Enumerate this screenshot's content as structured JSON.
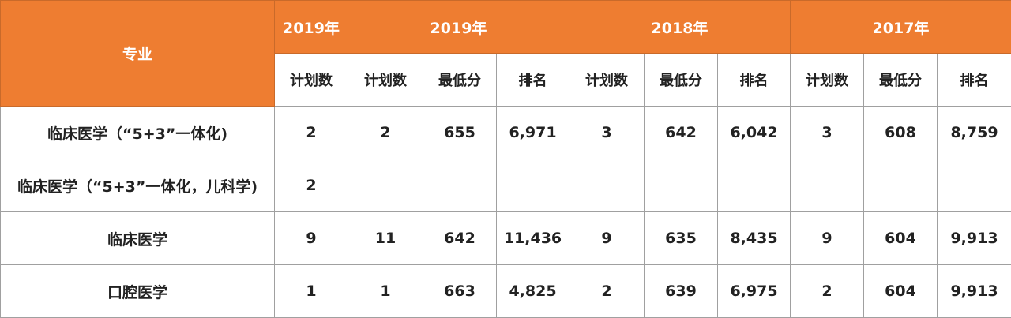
{
  "header": {
    "major_label": "专业",
    "groups": [
      "2019年",
      "2019年",
      "2018年",
      "2017年"
    ],
    "subheaders": [
      "计划数",
      "计划数",
      "最低分",
      "排名",
      "计划数",
      "最低分",
      "排名",
      "计划数",
      "最低分",
      "排名"
    ]
  },
  "rows": [
    {
      "major": "临床医学（“5+3”一体化)",
      "cells": [
        "2",
        "2",
        "655",
        "6,971",
        "3",
        "642",
        "6,042",
        "3",
        "608",
        "8,759"
      ]
    },
    {
      "major": "临床医学（“5+3”一体化，儿科学)",
      "cells": [
        "2",
        "",
        "",
        "",
        "",
        "",
        "",
        "",
        "",
        ""
      ]
    },
    {
      "major": "临床医学",
      "cells": [
        "9",
        "11",
        "642",
        "11,436",
        "9",
        "635",
        "8,435",
        "9",
        "604",
        "9,913"
      ]
    },
    {
      "major": "口腔医学",
      "cells": [
        "1",
        "1",
        "663",
        "4,825",
        "2",
        "639",
        "6,975",
        "2",
        "604",
        "9,913"
      ]
    }
  ],
  "colors": {
    "header_orange": "#EE7D31",
    "header_text": "#FFFFFF",
    "border": "#A0A0A0"
  }
}
